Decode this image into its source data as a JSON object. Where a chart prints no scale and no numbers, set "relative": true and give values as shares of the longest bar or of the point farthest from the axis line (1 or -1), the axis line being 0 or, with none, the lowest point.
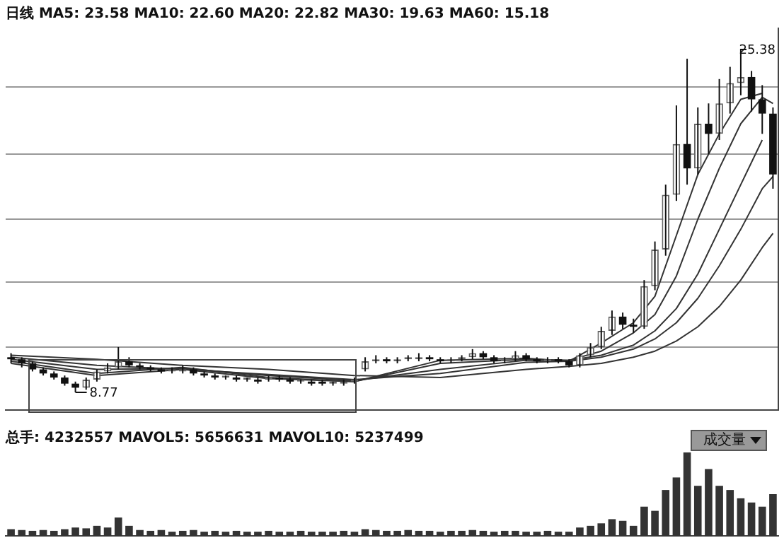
{
  "chart_data": [
    {
      "type": "candlestick",
      "title": "日线 MA5: 23.58 MA10: 22.60 MA20: 22.82 MA30: 19.63 MA60: 15.18",
      "categories": [
        null,
        null,
        null,
        null,
        null,
        null,
        null,
        null,
        null,
        null,
        null,
        null,
        null,
        null,
        null,
        null,
        null,
        null,
        null,
        null,
        null,
        null,
        null,
        null,
        null,
        null,
        null,
        null,
        null,
        null,
        null,
        null,
        null,
        null,
        null,
        null,
        null,
        null,
        null,
        null,
        null,
        null,
        null,
        null,
        null,
        null,
        null,
        null,
        null,
        null,
        null,
        null,
        null,
        null,
        null,
        null,
        null,
        null,
        null,
        null,
        null,
        null,
        null,
        null,
        null,
        null,
        null,
        null,
        null,
        null,
        null,
        null
      ],
      "ohlc": [
        [
          10.5,
          10.7,
          10.2,
          10.4
        ],
        [
          10.4,
          10.5,
          10.0,
          10.2
        ],
        [
          10.2,
          10.3,
          9.8,
          9.9
        ],
        [
          9.9,
          10.0,
          9.6,
          9.7
        ],
        [
          9.7,
          9.8,
          9.4,
          9.5
        ],
        [
          9.5,
          9.6,
          9.1,
          9.2
        ],
        [
          9.2,
          9.3,
          8.77,
          9.0
        ],
        [
          9.0,
          9.5,
          8.9,
          9.4
        ],
        [
          9.4,
          9.9,
          9.3,
          9.8
        ],
        [
          9.8,
          10.2,
          9.7,
          10.0
        ],
        [
          10.0,
          11.0,
          9.9,
          10.3
        ],
        [
          10.3,
          10.5,
          10.0,
          10.1
        ],
        [
          10.1,
          10.2,
          9.9,
          10.0
        ],
        [
          10.0,
          10.1,
          9.8,
          9.9
        ],
        [
          9.9,
          10.0,
          9.7,
          9.8
        ],
        [
          9.8,
          10.0,
          9.7,
          9.9
        ],
        [
          9.8,
          10.1,
          9.7,
          9.9
        ],
        [
          9.9,
          10.0,
          9.6,
          9.7
        ],
        [
          9.7,
          9.8,
          9.5,
          9.6
        ],
        [
          9.6,
          9.7,
          9.4,
          9.5
        ],
        [
          9.5,
          9.6,
          9.4,
          9.6
        ],
        [
          9.5,
          9.6,
          9.3,
          9.4
        ],
        [
          9.4,
          9.5,
          9.3,
          9.5
        ],
        [
          9.4,
          9.5,
          9.2,
          9.3
        ],
        [
          9.4,
          9.6,
          9.3,
          9.5
        ],
        [
          9.5,
          9.6,
          9.3,
          9.4
        ],
        [
          9.4,
          9.5,
          9.2,
          9.3
        ],
        [
          9.3,
          9.4,
          9.2,
          9.4
        ],
        [
          9.3,
          9.4,
          9.1,
          9.2
        ],
        [
          9.3,
          9.4,
          9.1,
          9.2
        ],
        [
          9.2,
          9.3,
          9.1,
          9.3
        ],
        [
          9.2,
          9.4,
          9.1,
          9.3
        ],
        [
          9.3,
          9.5,
          9.2,
          9.4
        ],
        [
          9.9,
          10.5,
          9.8,
          10.3
        ],
        [
          10.3,
          10.6,
          10.2,
          10.4
        ],
        [
          10.4,
          10.5,
          10.2,
          10.3
        ],
        [
          10.3,
          10.5,
          10.2,
          10.4
        ],
        [
          10.4,
          10.6,
          10.3,
          10.5
        ],
        [
          10.4,
          10.7,
          10.3,
          10.5
        ],
        [
          10.5,
          10.6,
          10.3,
          10.4
        ],
        [
          10.4,
          10.5,
          10.2,
          10.3
        ],
        [
          10.3,
          10.5,
          10.2,
          10.4
        ],
        [
          10.4,
          10.6,
          10.3,
          10.5
        ],
        [
          10.5,
          10.9,
          10.4,
          10.7
        ],
        [
          10.7,
          10.8,
          10.4,
          10.5
        ],
        [
          10.5,
          10.6,
          10.2,
          10.3
        ],
        [
          10.3,
          10.5,
          10.2,
          10.4
        ],
        [
          10.4,
          10.8,
          10.3,
          10.6
        ],
        [
          10.6,
          10.7,
          10.3,
          10.4
        ],
        [
          10.4,
          10.5,
          10.2,
          10.3
        ],
        [
          10.3,
          10.5,
          10.2,
          10.4
        ],
        [
          10.4,
          10.5,
          10.2,
          10.3
        ],
        [
          10.3,
          10.4,
          10.0,
          10.1
        ],
        [
          10.1,
          10.7,
          10.0,
          10.6
        ],
        [
          10.6,
          11.2,
          10.5,
          11.0
        ],
        [
          11.0,
          12.0,
          10.9,
          11.8
        ],
        [
          11.8,
          12.8,
          11.6,
          12.5
        ],
        [
          12.5,
          12.7,
          11.9,
          12.1
        ],
        [
          12.1,
          12.4,
          11.7,
          12.0
        ],
        [
          12.0,
          14.3,
          11.9,
          14.0
        ],
        [
          14.0,
          16.2,
          13.8,
          15.8
        ],
        [
          15.8,
          19.0,
          15.5,
          18.5
        ],
        [
          18.5,
          22.9,
          18.2,
          21.0
        ],
        [
          21.0,
          25.2,
          19.0,
          19.8
        ],
        [
          19.8,
          22.8,
          19.5,
          22.0
        ],
        [
          22.0,
          23.0,
          20.5,
          21.5
        ],
        [
          21.5,
          24.2,
          21.2,
          23.0
        ],
        [
          23.0,
          24.8,
          22.5,
          24.0
        ],
        [
          24.0,
          25.38,
          23.4,
          24.3
        ],
        [
          24.3,
          24.6,
          22.6,
          23.2
        ],
        [
          23.2,
          23.9,
          21.5,
          22.5
        ],
        [
          22.5,
          22.8,
          18.8,
          19.5
        ]
      ],
      "series": [
        {
          "type": "line",
          "color": "#333333",
          "values": [
            10.2,
            null,
            null,
            null,
            null,
            null,
            null,
            null,
            9.6,
            null,
            null,
            null,
            null,
            null,
            null,
            null,
            9.9,
            null,
            null,
            null,
            null,
            null,
            null,
            null,
            9.45,
            null,
            null,
            null,
            null,
            null,
            null,
            null,
            9.3,
            null,
            null,
            null,
            null,
            null,
            null,
            null,
            10.35,
            null,
            null,
            null,
            null,
            null,
            null,
            null,
            10.45,
            null,
            null,
            null,
            10.3,
            null,
            null,
            11.2,
            null,
            null,
            12.2,
            null,
            13.5,
            null,
            16.5,
            null,
            19.5,
            null,
            21.5,
            null,
            23.2,
            null,
            23.5,
            null
          ]
        },
        {
          "type": "line",
          "color": "#333333",
          "values": [
            10.3,
            null,
            null,
            null,
            null,
            null,
            null,
            null,
            9.7,
            null,
            null,
            null,
            null,
            null,
            null,
            null,
            10.0,
            null,
            null,
            null,
            null,
            null,
            null,
            null,
            9.5,
            null,
            null,
            null,
            null,
            null,
            null,
            null,
            9.3,
            null,
            null,
            null,
            null,
            null,
            null,
            null,
            10.2,
            null,
            null,
            null,
            null,
            null,
            null,
            null,
            10.4,
            null,
            null,
            null,
            10.35,
            null,
            null,
            10.8,
            null,
            null,
            11.7,
            null,
            12.6,
            null,
            14.5,
            null,
            17.3,
            null,
            19.8,
            null,
            22.0,
            null,
            23.3,
            23.0
          ]
        },
        {
          "type": "line",
          "color": "#333333",
          "values": [
            10.4,
            null,
            null,
            null,
            null,
            null,
            null,
            null,
            9.9,
            null,
            null,
            null,
            null,
            null,
            null,
            null,
            9.95,
            null,
            null,
            null,
            null,
            null,
            null,
            null,
            9.6,
            null,
            null,
            null,
            null,
            null,
            null,
            null,
            9.35,
            null,
            null,
            null,
            null,
            null,
            null,
            null,
            9.9,
            null,
            null,
            null,
            null,
            null,
            null,
            null,
            10.35,
            null,
            null,
            null,
            10.35,
            null,
            null,
            10.6,
            null,
            null,
            11.1,
            null,
            11.8,
            null,
            12.9,
            null,
            14.6,
            null,
            16.8,
            null,
            19.0,
            null,
            21.2,
            null
          ]
        },
        {
          "type": "line",
          "color": "#333333",
          "values": [
            10.5,
            null,
            null,
            null,
            null,
            null,
            null,
            null,
            10.1,
            null,
            null,
            null,
            null,
            null,
            null,
            null,
            9.9,
            null,
            null,
            null,
            null,
            null,
            null,
            null,
            9.65,
            null,
            null,
            null,
            null,
            null,
            null,
            null,
            9.4,
            null,
            null,
            null,
            null,
            null,
            null,
            null,
            9.7,
            null,
            null,
            null,
            null,
            null,
            null,
            null,
            10.25,
            null,
            null,
            null,
            10.3,
            null,
            null,
            10.5,
            null,
            null,
            10.9,
            null,
            11.4,
            null,
            12.2,
            null,
            13.4,
            null,
            15.0,
            null,
            16.8,
            null,
            18.8,
            19.4
          ]
        },
        {
          "type": "line",
          "color": "#333333",
          "values": [
            10.6,
            null,
            null,
            null,
            null,
            null,
            null,
            null,
            10.4,
            null,
            null,
            null,
            null,
            null,
            null,
            null,
            10.1,
            null,
            null,
            null,
            null,
            null,
            null,
            null,
            9.9,
            null,
            null,
            null,
            null,
            null,
            null,
            null,
            9.6,
            null,
            null,
            null,
            null,
            null,
            null,
            null,
            9.5,
            null,
            null,
            null,
            null,
            null,
            null,
            null,
            9.9,
            null,
            null,
            null,
            10.05,
            null,
            null,
            10.2,
            null,
            null,
            10.5,
            null,
            10.8,
            null,
            11.3,
            null,
            12.0,
            null,
            13.0,
            null,
            14.3,
            null,
            15.9,
            16.6
          ]
        }
      ],
      "ylim": [
        7.9,
        26.7
      ],
      "yticks": [
        {
          "value": 11.0,
          "label": null
        },
        {
          "value": 14.2,
          "label": null
        },
        {
          "value": 17.3,
          "label": null
        },
        {
          "value": 20.5,
          "label": null
        },
        {
          "value": 23.8,
          "label": null
        }
      ],
      "grid": "y",
      "tick_labels": false,
      "annotations": [
        "25.38",
        "8.77"
      ]
    },
    {
      "type": "bar",
      "title": "总手: 4232557 MAVOL5: 5656631 MAVOL10: 5237499",
      "relative": true,
      "color": "#333333",
      "categories": [
        null,
        null,
        null,
        null,
        null,
        null,
        null,
        null,
        null,
        null,
        null,
        null,
        null,
        null,
        null,
        null,
        null,
        null,
        null,
        null,
        null,
        null,
        null,
        null,
        null,
        null,
        null,
        null,
        null,
        null,
        null,
        null,
        null,
        null,
        null,
        null,
        null,
        null,
        null,
        null,
        null,
        null,
        null,
        null,
        null,
        null,
        null,
        null,
        null,
        null,
        null,
        null,
        null,
        null,
        null,
        null,
        null,
        null,
        null,
        null,
        null,
        null,
        null,
        null,
        null,
        null,
        null,
        null,
        null,
        null,
        null,
        null
      ],
      "values": [
        0.08,
        0.07,
        0.06,
        0.07,
        0.06,
        0.08,
        0.1,
        0.09,
        0.12,
        0.1,
        0.22,
        0.12,
        0.07,
        0.06,
        0.07,
        0.05,
        0.06,
        0.07,
        0.05,
        0.06,
        0.05,
        0.06,
        0.05,
        0.05,
        0.06,
        0.05,
        0.05,
        0.06,
        0.05,
        0.05,
        0.05,
        0.06,
        0.05,
        0.08,
        0.07,
        0.06,
        0.06,
        0.07,
        0.06,
        0.06,
        0.05,
        0.06,
        0.06,
        0.07,
        0.06,
        0.05,
        0.06,
        0.06,
        0.05,
        0.05,
        0.06,
        0.05,
        0.05,
        0.1,
        0.12,
        0.15,
        0.2,
        0.18,
        0.12,
        0.35,
        0.3,
        0.55,
        0.7,
        1.0,
        0.6,
        0.8,
        0.6,
        0.55,
        0.45,
        0.4,
        0.35,
        0.5
      ],
      "tick_labels": false,
      "annotations": [
        "成交量"
      ]
    }
  ]
}
